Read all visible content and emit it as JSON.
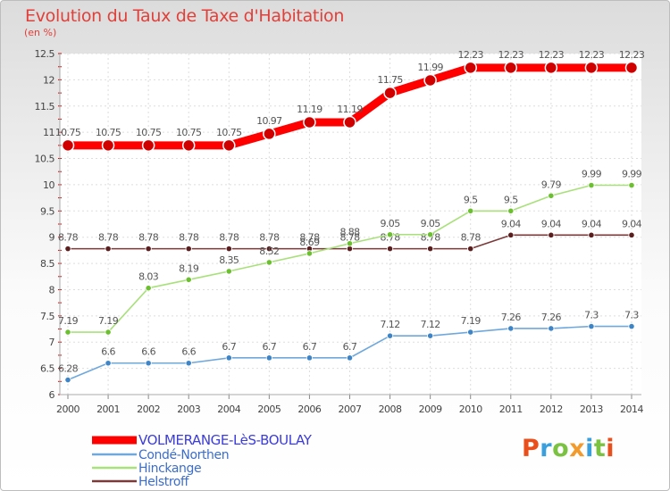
{
  "title": "Evolution du Taux de Taxe d'Habitation",
  "unit_label": "(en %)",
  "brand": {
    "letters": [
      "P",
      "r",
      "o",
      "x",
      "i",
      "t",
      "i"
    ],
    "colors": [
      "#e94e1b",
      "#3aa0dd",
      "#7cc242",
      "#f29b2c",
      "#3aa0dd",
      "#7cc242",
      "#e94e1b"
    ]
  },
  "chart_data": {
    "type": "line",
    "title": "Evolution du Taux de Taxe d'Habitation",
    "ylabel": "(en %)",
    "xlabel": "",
    "ylim": [
      6,
      12.5
    ],
    "yticks": [
      "6",
      "6.5",
      "7",
      "7.5",
      "8",
      "8.5",
      "9",
      "9.5",
      "10",
      "10.5",
      "11",
      "11.5",
      "12",
      "12.5"
    ],
    "grid": true,
    "legend_position": "bottom-left",
    "categories": [
      "2000",
      "2001",
      "2002",
      "2003",
      "2004",
      "2005",
      "2006",
      "2007",
      "2008",
      "2009",
      "2010",
      "2011",
      "2012",
      "2013",
      "2014"
    ],
    "series": [
      {
        "name": "VOLMERANGE-LèS-BOULAY",
        "color": "#ff0000",
        "point_color": "#d00000",
        "label_color": "#555555",
        "values": [
          10.75,
          10.75,
          10.75,
          10.75,
          10.75,
          10.97,
          11.19,
          11.19,
          11.75,
          11.99,
          12.23,
          12.23,
          12.23,
          12.23,
          12.23
        ],
        "labels": [
          "10.75",
          "10.75",
          "10.75",
          "10.75",
          "10.75",
          "10.97",
          "11.19",
          "11.19",
          "11.75",
          "11.99",
          "12.23",
          "12.23",
          "12.23",
          "12.23",
          "12.23"
        ]
      },
      {
        "name": "Condé-Northen",
        "color": "#6fa8dc",
        "point_color": "#3d85c6",
        "label_color": "#555555",
        "values": [
          6.28,
          6.6,
          6.6,
          6.6,
          6.7,
          6.7,
          6.7,
          6.7,
          7.12,
          7.12,
          7.19,
          7.26,
          7.26,
          7.3,
          7.3
        ],
        "labels": [
          "6.28",
          "6.6",
          "6.6",
          "6.6",
          "6.7",
          "6.7",
          "6.7",
          "6.7",
          "7.12",
          "7.12",
          "7.19",
          "7.26",
          "7.26",
          "7.3",
          "7.3"
        ]
      },
      {
        "name": "Hinckange",
        "color": "#a8e07a",
        "point_color": "#6cc030",
        "label_color": "#555555",
        "values": [
          7.19,
          7.19,
          8.03,
          8.19,
          8.35,
          8.52,
          8.69,
          8.88,
          9.05,
          9.05,
          9.5,
          9.5,
          9.79,
          9.99,
          9.99
        ],
        "labels": [
          "7.19",
          "7.19",
          "8.03",
          "8.19",
          "8.35",
          "8.52",
          "8.69",
          "8.88",
          "9.05",
          "9.05",
          "9.5",
          "9.5",
          "9.79",
          "9.99",
          "9.99"
        ]
      },
      {
        "name": "Helstroff",
        "color": "#7a3a3a",
        "point_color": "#5a1e1e",
        "label_color": "#555555",
        "values": [
          8.78,
          8.78,
          8.78,
          8.78,
          8.78,
          8.78,
          8.78,
          8.78,
          8.78,
          8.78,
          8.78,
          9.04,
          9.04,
          9.04,
          9.04
        ],
        "labels": [
          "8.78",
          "8.78",
          "8.78",
          "8.78",
          "8.78",
          "8.78",
          "8.78",
          "8.78",
          "8.78",
          "8.78",
          "8.78",
          "9.04",
          "9.04",
          "9.04",
          "9.04"
        ]
      }
    ]
  }
}
